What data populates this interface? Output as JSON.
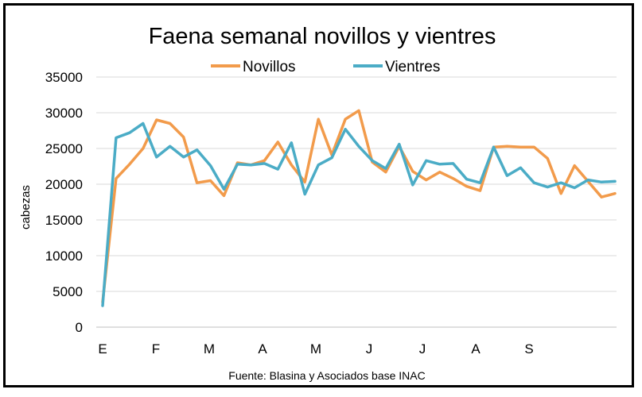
{
  "chart_data": {
    "type": "line",
    "title": "Faena semanal novillos y vientres",
    "xlabel": "",
    "ylabel": "cabezas",
    "ylim": [
      0,
      35000
    ],
    "yticks": [
      "0",
      "5000",
      "10000",
      "15000",
      "20000",
      "25000",
      "30000",
      "35000"
    ],
    "xtick_labels": [
      "E",
      "F",
      "M",
      "A",
      "M",
      "J",
      "J",
      "A",
      "S"
    ],
    "grid": "horizontal",
    "legend_position": "top",
    "source": "Fuente: Blasina y Asociados base INAC",
    "series": [
      {
        "name": "Novillos",
        "color": "#F29B4B",
        "values": [
          3500,
          20800,
          22800,
          25000,
          29000,
          28500,
          26600,
          20200,
          20500,
          18400,
          23000,
          22700,
          23300,
          25900,
          22700,
          20300,
          29100,
          24100,
          29100,
          30300,
          23100,
          21700,
          25300,
          21800,
          20600,
          21700,
          20800,
          19700,
          19100,
          25200,
          25300,
          25200,
          25200,
          23600,
          18700,
          22600,
          20400,
          18200,
          18700
        ]
      },
      {
        "name": "Vientres",
        "color": "#4BACC6",
        "values": [
          3000,
          26500,
          27200,
          28500,
          23800,
          25300,
          23800,
          24800,
          22600,
          19300,
          22800,
          22700,
          22900,
          22100,
          25800,
          18600,
          22700,
          23700,
          27700,
          25300,
          23300,
          22200,
          25600,
          19900,
          23300,
          22800,
          22900,
          20700,
          20200,
          25200,
          21200,
          22300,
          20200,
          19600,
          20200,
          19500,
          20600,
          20300,
          20400
        ]
      }
    ]
  }
}
